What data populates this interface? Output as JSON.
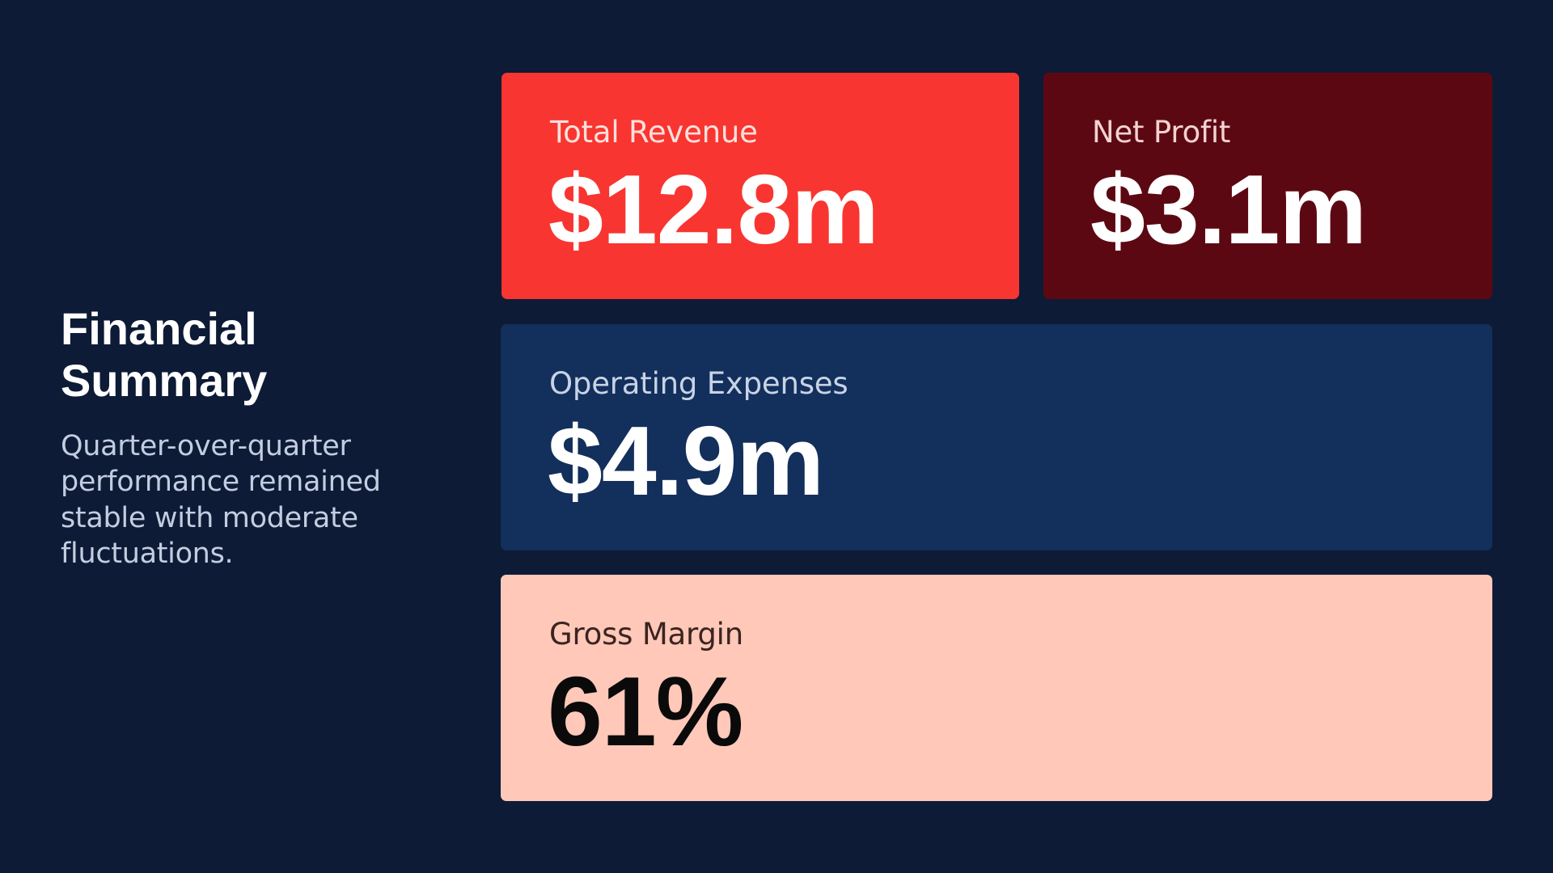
{
  "summary": {
    "title_line1": "Financial",
    "title_line2": "Summary",
    "description": "Quarter-over-quarter performance remained stable with moderate fluctuations."
  },
  "metrics": [
    {
      "label": "Total Revenue",
      "value": "$12.8m",
      "bg_color": "#f83530"
    },
    {
      "label": "Net Profit",
      "value": "$3.1m",
      "bg_color": "#5c0812"
    },
    {
      "label": "Operating Expenses",
      "value": "$4.9m",
      "bg_color": "#132f5b"
    },
    {
      "label": "Gross Margin",
      "value": "61%",
      "bg_color": "#ffc8b9"
    }
  ],
  "colors": {
    "background": "#0d1b36",
    "text_primary": "#ffffff",
    "text_secondary": "#c4cde0"
  }
}
